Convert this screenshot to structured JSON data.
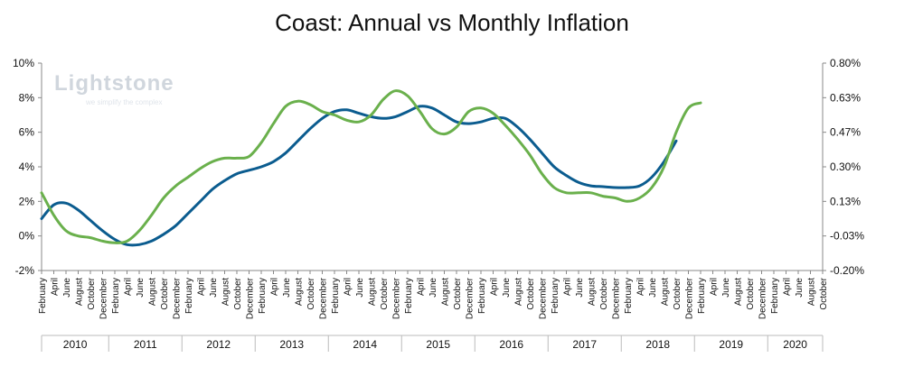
{
  "chart_data": {
    "type": "line",
    "title": "Coast: Annual vs Monthly Inflation",
    "watermark": {
      "brand": "Lightstone",
      "tagline": "we simplify the complex"
    },
    "y_left": {
      "ticks": [
        "10%",
        "8%",
        "6%",
        "4%",
        "2%",
        "0%",
        "-2%"
      ],
      "min": -2,
      "max": 10
    },
    "y_right": {
      "ticks": [
        "0.80%",
        "0.63%",
        "0.47%",
        "0.30%",
        "0.13%",
        "-0.03%",
        "-0.20%"
      ],
      "min": -0.2,
      "max": 0.8
    },
    "months_label_cycle": [
      "February",
      "April",
      "June",
      "August",
      "October",
      "December"
    ],
    "years": [
      "2010",
      "2011",
      "2012",
      "2013",
      "2014",
      "2015",
      "2016",
      "2017",
      "2018",
      "2019",
      "2020"
    ],
    "x_index_range": [
      0,
      64
    ],
    "series": [
      {
        "color": "#0b5c8f",
        "axis": "left",
        "points": [
          [
            0,
            1.0
          ],
          [
            1,
            1.8
          ],
          [
            2,
            1.9
          ],
          [
            3,
            1.5
          ],
          [
            4,
            0.9
          ],
          [
            5,
            0.3
          ],
          [
            6,
            -0.2
          ],
          [
            7,
            -0.5
          ],
          [
            8,
            -0.5
          ],
          [
            9,
            -0.3
          ],
          [
            10,
            0.1
          ],
          [
            11,
            0.6
          ],
          [
            12,
            1.3
          ],
          [
            13,
            2.0
          ],
          [
            14,
            2.7
          ],
          [
            15,
            3.2
          ],
          [
            16,
            3.6
          ],
          [
            17,
            3.8
          ],
          [
            18,
            4.0
          ],
          [
            19,
            4.3
          ],
          [
            20,
            4.8
          ],
          [
            21,
            5.5
          ],
          [
            22,
            6.2
          ],
          [
            23,
            6.8
          ],
          [
            24,
            7.2
          ],
          [
            25,
            7.3
          ],
          [
            26,
            7.1
          ],
          [
            27,
            6.9
          ],
          [
            28,
            6.8
          ],
          [
            29,
            6.9
          ],
          [
            30,
            7.2
          ],
          [
            31,
            7.5
          ],
          [
            32,
            7.4
          ],
          [
            33,
            7.0
          ],
          [
            34,
            6.6
          ],
          [
            35,
            6.5
          ],
          [
            36,
            6.6
          ],
          [
            37,
            6.8
          ],
          [
            38,
            6.8
          ],
          [
            39,
            6.3
          ],
          [
            40,
            5.6
          ],
          [
            41,
            4.8
          ],
          [
            42,
            4.0
          ],
          [
            43,
            3.5
          ],
          [
            44,
            3.1
          ],
          [
            45,
            2.9
          ],
          [
            46,
            2.85
          ],
          [
            47,
            2.8
          ],
          [
            48,
            2.8
          ],
          [
            49,
            2.9
          ],
          [
            50,
            3.4
          ],
          [
            51,
            4.3
          ],
          [
            52,
            5.5
          ]
        ]
      },
      {
        "color": "#6ab04c",
        "axis": "left",
        "points": [
          [
            0,
            2.5
          ],
          [
            1,
            1.2
          ],
          [
            2,
            0.3
          ],
          [
            3,
            0.0
          ],
          [
            4,
            -0.1
          ],
          [
            5,
            -0.3
          ],
          [
            6,
            -0.4
          ],
          [
            7,
            -0.3
          ],
          [
            8,
            0.3
          ],
          [
            9,
            1.2
          ],
          [
            10,
            2.2
          ],
          [
            11,
            2.9
          ],
          [
            12,
            3.4
          ],
          [
            13,
            3.9
          ],
          [
            14,
            4.3
          ],
          [
            15,
            4.5
          ],
          [
            16,
            4.5
          ],
          [
            17,
            4.6
          ],
          [
            18,
            5.4
          ],
          [
            19,
            6.5
          ],
          [
            20,
            7.5
          ],
          [
            21,
            7.8
          ],
          [
            22,
            7.6
          ],
          [
            23,
            7.2
          ],
          [
            24,
            7.0
          ],
          [
            25,
            6.7
          ],
          [
            26,
            6.6
          ],
          [
            27,
            7.0
          ],
          [
            28,
            7.9
          ],
          [
            29,
            8.4
          ],
          [
            30,
            8.1
          ],
          [
            31,
            7.2
          ],
          [
            32,
            6.2
          ],
          [
            33,
            5.9
          ],
          [
            34,
            6.3
          ],
          [
            35,
            7.2
          ],
          [
            36,
            7.4
          ],
          [
            37,
            7.1
          ],
          [
            38,
            6.4
          ],
          [
            39,
            5.6
          ],
          [
            40,
            4.7
          ],
          [
            41,
            3.6
          ],
          [
            42,
            2.8
          ],
          [
            43,
            2.5
          ],
          [
            44,
            2.5
          ],
          [
            45,
            2.5
          ],
          [
            46,
            2.3
          ],
          [
            47,
            2.2
          ],
          [
            48,
            2.0
          ],
          [
            49,
            2.2
          ],
          [
            50,
            2.8
          ],
          [
            51,
            4.0
          ],
          [
            52,
            6.0
          ],
          [
            53,
            7.4
          ],
          [
            54,
            7.7
          ]
        ]
      }
    ],
    "grid": false,
    "legend": "none"
  }
}
